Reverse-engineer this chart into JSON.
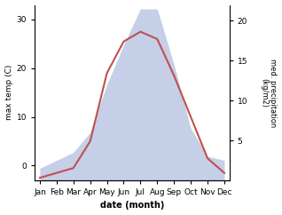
{
  "months": [
    "Jan",
    "Feb",
    "Mar",
    "Apr",
    "May",
    "Jun",
    "Jul",
    "Aug",
    "Sep",
    "Oct",
    "Nov",
    "Dec"
  ],
  "month_positions": [
    0,
    1,
    2,
    3,
    4,
    5,
    6,
    7,
    8,
    9,
    10,
    11
  ],
  "temperature": [
    -2.5,
    -1.5,
    -0.5,
    5.0,
    19.0,
    25.5,
    27.5,
    26.0,
    18.5,
    10.0,
    1.5,
    -1.5
  ],
  "precipitation": [
    1.5,
    2.5,
    3.5,
    6.0,
    12.0,
    17.0,
    21.5,
    21.5,
    14.5,
    6.5,
    3.0,
    2.5
  ],
  "temp_color": "#c0504d",
  "precip_fill_color": "#c5cfe8",
  "temp_ylim": [
    -3,
    33
  ],
  "precip_ylim": [
    0,
    22
  ],
  "temp_yticks": [
    0,
    10,
    20,
    30
  ],
  "temp_yticklabels": [
    "0",
    "10",
    "20",
    "30"
  ],
  "precip_yticks": [
    5,
    10,
    15,
    20
  ],
  "precip_yticklabels": [
    "5",
    "10",
    "15",
    "20"
  ],
  "ylabel_left": "max temp (C)",
  "ylabel_right": "med. precipitation\n(kg/m2)",
  "xlabel": "date (month)",
  "background_color": "#ffffff"
}
